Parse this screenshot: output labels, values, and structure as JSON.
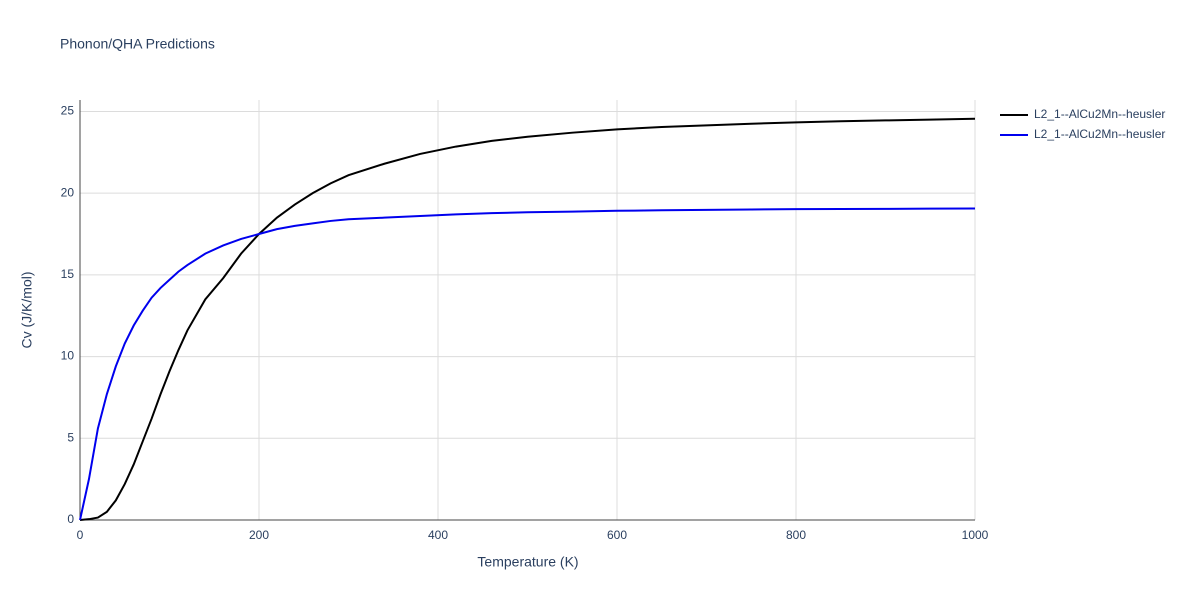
{
  "chart_data": {
    "type": "line",
    "title": "Phonon/QHA Predictions",
    "x_label": "Temperature (K)",
    "y_label": "Cv (J/K/mol)",
    "x": [
      0,
      10,
      20,
      30,
      40,
      50,
      60,
      70,
      80,
      90,
      100,
      110,
      120,
      140,
      160,
      180,
      200,
      220,
      240,
      260,
      280,
      300,
      340,
      380,
      420,
      460,
      500,
      550,
      600,
      650,
      700,
      750,
      800,
      850,
      900,
      950,
      1000
    ],
    "series": [
      {
        "name": "L2_1--AlCu2Mn--heusler",
        "color": "#000000",
        "values": [
          0,
          0.05,
          0.15,
          0.5,
          1.2,
          2.2,
          3.4,
          4.8,
          6.2,
          7.7,
          9.1,
          10.4,
          11.6,
          13.5,
          14.8,
          16.3,
          17.5,
          18.5,
          19.3,
          20.0,
          20.6,
          21.1,
          21.8,
          22.4,
          22.85,
          23.2,
          23.45,
          23.7,
          23.9,
          24.05,
          24.15,
          24.25,
          24.33,
          24.4,
          24.45,
          24.5,
          24.55
        ]
      },
      {
        "name": "L2_1--AlCu2Mn--heusler",
        "color": "#0000ee",
        "values": [
          0,
          2.5,
          5.6,
          7.7,
          9.4,
          10.8,
          11.9,
          12.8,
          13.6,
          14.2,
          14.7,
          15.2,
          15.6,
          16.3,
          16.8,
          17.2,
          17.5,
          17.8,
          18.0,
          18.15,
          18.3,
          18.4,
          18.5,
          18.6,
          18.7,
          18.78,
          18.83,
          18.87,
          18.92,
          18.95,
          18.98,
          19.0,
          19.02,
          19.03,
          19.04,
          19.05,
          19.06
        ]
      }
    ],
    "xlim": [
      0,
      1000
    ],
    "xticks": [
      0,
      200,
      400,
      600,
      800,
      1000
    ],
    "ylim": [
      0,
      25.7
    ],
    "yticks": [
      0,
      5,
      10,
      15,
      20,
      25
    ],
    "grid": true,
    "legend": "top-right"
  }
}
